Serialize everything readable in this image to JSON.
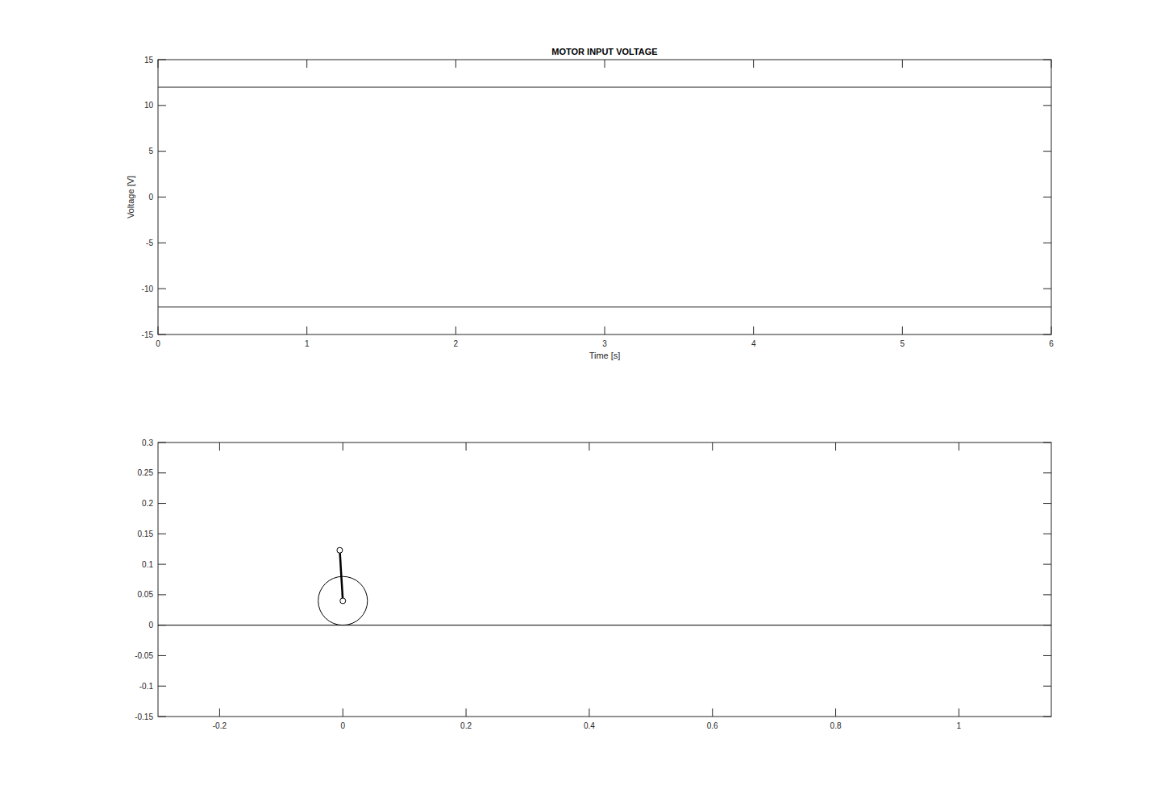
{
  "chart_data": [
    {
      "type": "line",
      "title": "MOTOR INPUT VOLTAGE",
      "x_label": "Time [s]",
      "y_label": "Voltage [V]",
      "xlim": [
        0,
        6
      ],
      "xticks": [
        0,
        1,
        2,
        3,
        4,
        5,
        6
      ],
      "ylim": [
        -15,
        15
      ],
      "yticks": [
        -15,
        -10,
        -5,
        0,
        5,
        10,
        15
      ],
      "series": [
        {
          "x": [
            0,
            6
          ],
          "values": [
            12,
            12
          ],
          "color": "#333333",
          "line_style": "solid"
        },
        {
          "x": [
            0,
            6
          ],
          "values": [
            -12,
            -12
          ],
          "color": "#333333",
          "line_style": "solid"
        }
      ]
    },
    {
      "type": "line",
      "xlim": [
        -0.3,
        1.15
      ],
      "xticks": [
        -0.2,
        0,
        0.2,
        0.4,
        0.6,
        0.8,
        1
      ],
      "ylim": [
        -0.15,
        0.3
      ],
      "yticks": [
        -0.15,
        -0.1,
        -0.05,
        0,
        0.05,
        0.1,
        0.15,
        0.2,
        0.25,
        0.3
      ],
      "series": [
        {
          "x": [
            -0.3,
            1.15
          ],
          "values": [
            0,
            0
          ],
          "color": "#000000",
          "line_style": "solid"
        },
        {
          "x": [
            0,
            -0.005
          ],
          "values": [
            0.04,
            0.123
          ],
          "color": "#000000",
          "line_style": "solid",
          "marker": "o"
        }
      ],
      "wheel": {
        "x": 0,
        "y": 0.04,
        "r": 0.04,
        "color": "#000000"
      }
    }
  ]
}
